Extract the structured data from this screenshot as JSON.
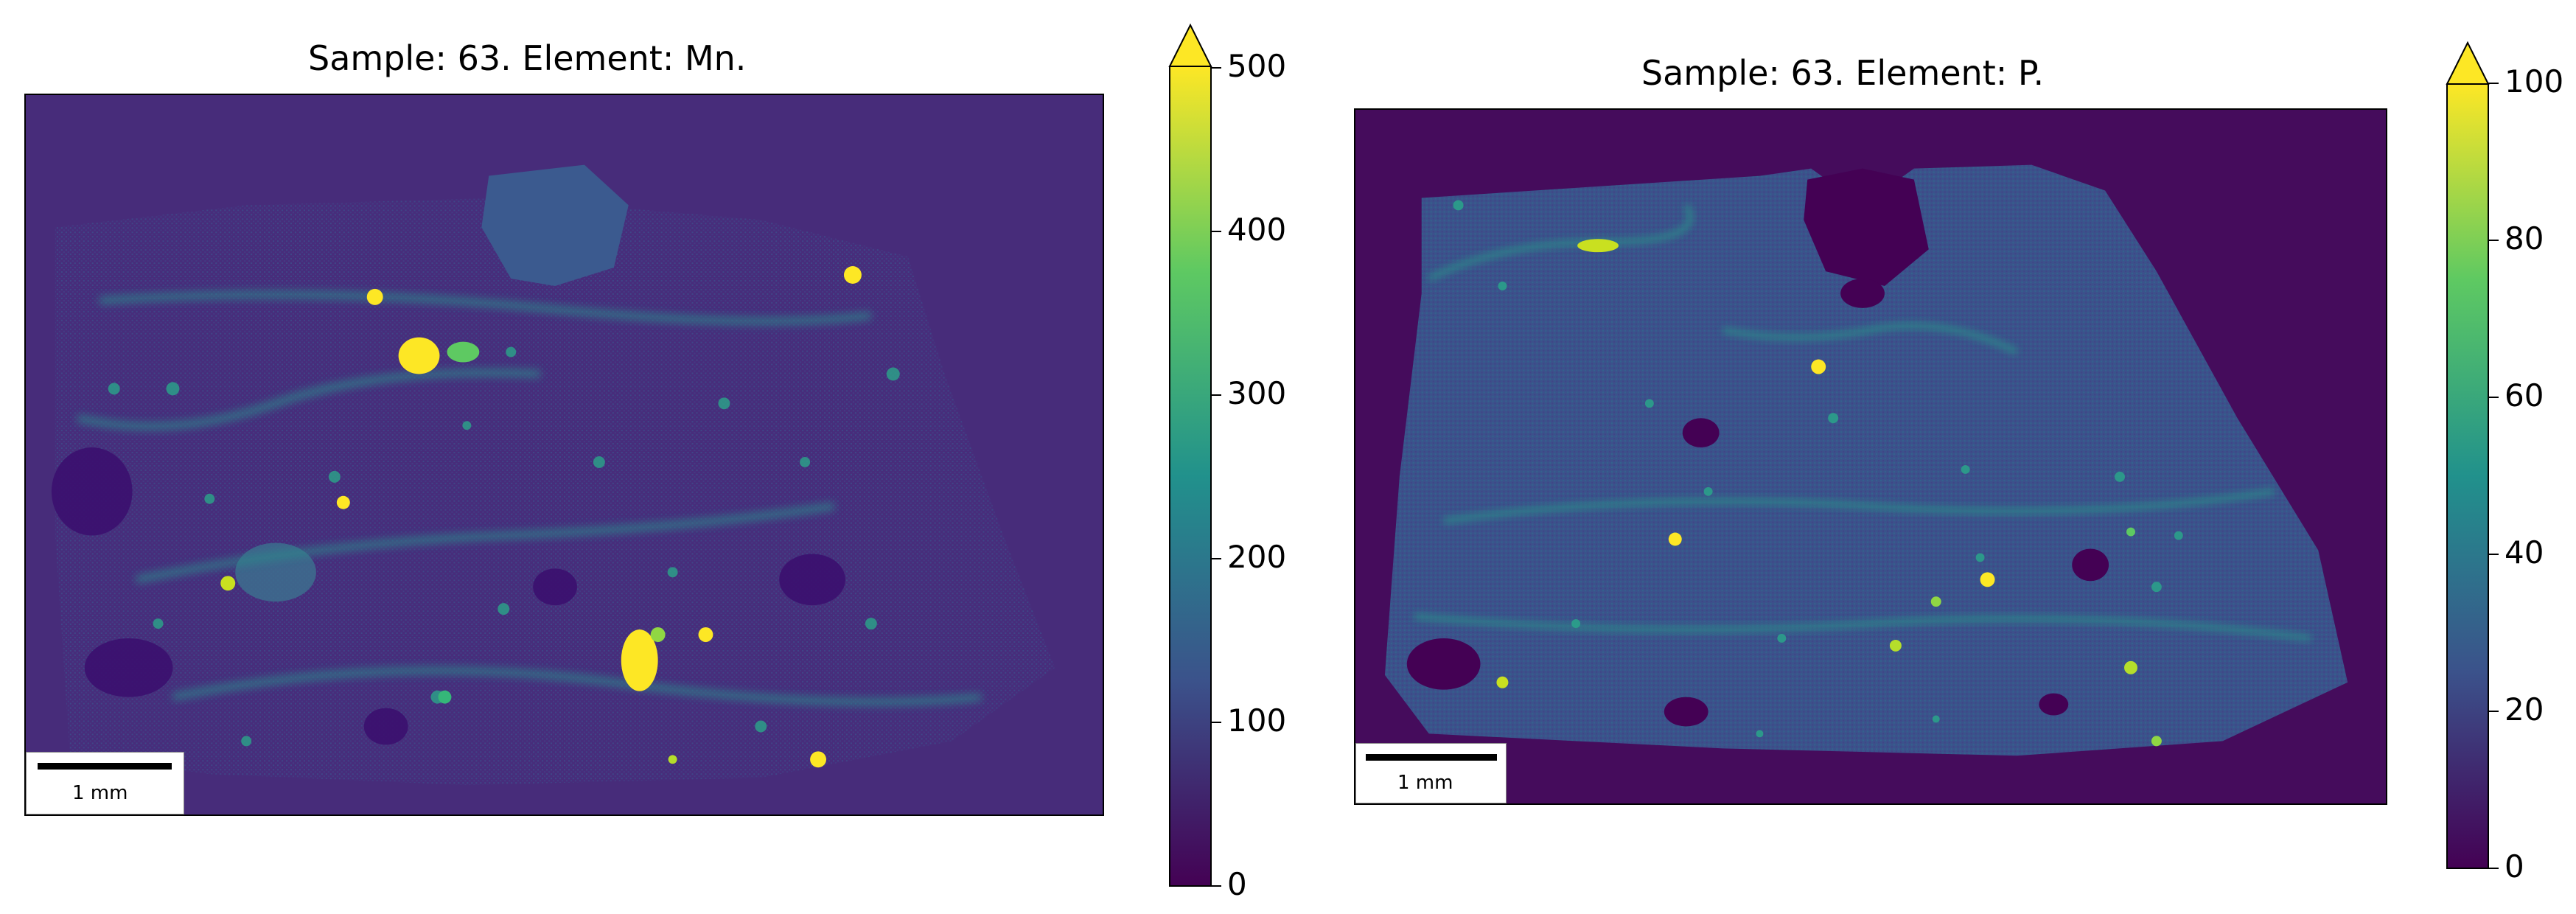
{
  "chart_data": [
    {
      "type": "heatmap",
      "title": "Sample: 63. Element: Mn.",
      "colormap": "viridis",
      "colorbar": {
        "min": 0,
        "max": 500,
        "ticks": [
          "0",
          "100",
          "200",
          "300",
          "400",
          "500"
        ],
        "extend": "max"
      },
      "scalebar_label": "1 mm"
    },
    {
      "type": "heatmap",
      "title": "Sample: 63. Element: P.",
      "colormap": "viridis",
      "colorbar": {
        "min": 0,
        "max": 100,
        "ticks": [
          "0",
          "20",
          "40",
          "60",
          "80",
          "100"
        ],
        "extend": "max"
      },
      "scalebar_label": "1 mm"
    }
  ],
  "colors": {
    "background_low": "#440154",
    "mid_low": "#3b528b",
    "mid": "#21918c",
    "mid_high": "#5ec962",
    "high": "#fde725"
  }
}
